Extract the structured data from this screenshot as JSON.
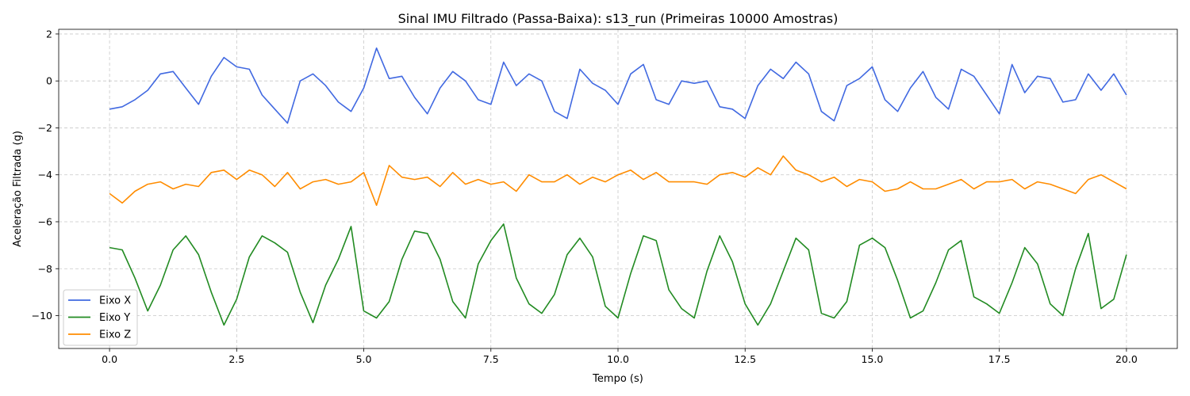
{
  "chart_data": {
    "type": "line",
    "title": "Sinal IMU Filtrado (Passa-Baixa): s13_run (Primeiras 10000 Amostras)",
    "xlabel": "Tempo (s)",
    "ylabel": "Aceleração Filtrada (g)",
    "xlim": [
      -1.0,
      21.0
    ],
    "ylim": [
      -11.4,
      2.2
    ],
    "xticks": [
      0.0,
      2.5,
      5.0,
      7.5,
      10.0,
      12.5,
      15.0,
      17.5,
      20.0
    ],
    "xtick_labels": [
      "0.0",
      "2.5",
      "5.0",
      "7.5",
      "10.0",
      "12.5",
      "15.0",
      "17.5",
      "20.0"
    ],
    "yticks": [
      2,
      0,
      -2,
      -4,
      -6,
      -8,
      -10
    ],
    "ytick_labels": [
      "2",
      "0",
      "−2",
      "−4",
      "−6",
      "−8",
      "−10"
    ],
    "grid": true,
    "legend_position": "lower-left",
    "series": [
      {
        "name": "Eixo X",
        "color": "#4169e1",
        "x": [
          0.0,
          0.25,
          0.5,
          0.75,
          1.0,
          1.25,
          1.5,
          1.75,
          2.0,
          2.25,
          2.5,
          2.75,
          3.0,
          3.25,
          3.5,
          3.75,
          4.0,
          4.25,
          4.5,
          4.75,
          5.0,
          5.25,
          5.5,
          5.75,
          6.0,
          6.25,
          6.5,
          6.75,
          7.0,
          7.25,
          7.5,
          7.75,
          8.0,
          8.25,
          8.5,
          8.75,
          9.0,
          9.25,
          9.5,
          9.75,
          10.0,
          10.25,
          10.5,
          10.75,
          11.0,
          11.25,
          11.5,
          11.75,
          12.0,
          12.25,
          12.5,
          12.75,
          13.0,
          13.25,
          13.5,
          13.75,
          14.0,
          14.25,
          14.5,
          14.75,
          15.0,
          15.25,
          15.5,
          15.75,
          16.0,
          16.25,
          16.5,
          16.75,
          17.0,
          17.25,
          17.5,
          17.75,
          18.0,
          18.25,
          18.5,
          18.75,
          19.0,
          19.25,
          19.5,
          19.75,
          20.0
        ],
        "values": [
          -1.2,
          -1.1,
          -0.8,
          -0.4,
          0.3,
          0.4,
          -0.3,
          -1.0,
          0.2,
          1.0,
          0.6,
          0.5,
          -0.6,
          -1.2,
          -1.8,
          0.0,
          0.3,
          -0.2,
          -0.9,
          -1.3,
          -0.3,
          1.4,
          0.1,
          0.2,
          -0.7,
          -1.4,
          -0.3,
          0.4,
          0.0,
          -0.8,
          -1.0,
          0.8,
          -0.2,
          0.3,
          0.0,
          -1.3,
          -1.6,
          0.5,
          -0.1,
          -0.4,
          -1.0,
          0.3,
          0.7,
          -0.8,
          -1.0,
          0.0,
          -0.1,
          0.0,
          -1.1,
          -1.2,
          -1.6,
          -0.2,
          0.5,
          0.1,
          0.8,
          0.3,
          -1.3,
          -1.7,
          -0.2,
          0.1,
          0.6,
          -0.8,
          -1.3,
          -0.3,
          0.4,
          -0.7,
          -1.2,
          0.5,
          0.2,
          -0.6,
          -1.4,
          0.7,
          -0.5,
          0.2,
          0.1,
          -0.9,
          -0.8,
          0.3,
          -0.4,
          0.3,
          -0.6
        ]
      },
      {
        "name": "Eixo Y",
        "color": "#228b22",
        "x": [
          0.0,
          0.25,
          0.5,
          0.75,
          1.0,
          1.25,
          1.5,
          1.75,
          2.0,
          2.25,
          2.5,
          2.75,
          3.0,
          3.25,
          3.5,
          3.75,
          4.0,
          4.25,
          4.5,
          4.75,
          5.0,
          5.25,
          5.5,
          5.75,
          6.0,
          6.25,
          6.5,
          6.75,
          7.0,
          7.25,
          7.5,
          7.75,
          8.0,
          8.25,
          8.5,
          8.75,
          9.0,
          9.25,
          9.5,
          9.75,
          10.0,
          10.25,
          10.5,
          10.75,
          11.0,
          11.25,
          11.5,
          11.75,
          12.0,
          12.25,
          12.5,
          12.75,
          13.0,
          13.25,
          13.5,
          13.75,
          14.0,
          14.25,
          14.5,
          14.75,
          15.0,
          15.25,
          15.5,
          15.75,
          16.0,
          16.25,
          16.5,
          16.75,
          17.0,
          17.25,
          17.5,
          17.75,
          18.0,
          18.25,
          18.5,
          18.75,
          19.0,
          19.25,
          19.5,
          19.75,
          20.0
        ],
        "values": [
          -7.1,
          -7.2,
          -8.4,
          -9.8,
          -8.7,
          -7.2,
          -6.6,
          -7.4,
          -9.0,
          -10.4,
          -9.3,
          -7.5,
          -6.6,
          -6.9,
          -7.3,
          -9.0,
          -10.3,
          -8.7,
          -7.6,
          -6.2,
          -9.8,
          -10.1,
          -9.4,
          -7.6,
          -6.4,
          -6.5,
          -7.6,
          -9.4,
          -10.1,
          -7.8,
          -6.8,
          -6.1,
          -8.4,
          -9.5,
          -9.9,
          -9.1,
          -7.4,
          -6.7,
          -7.5,
          -9.6,
          -10.1,
          -8.2,
          -6.6,
          -6.8,
          -8.9,
          -9.7,
          -10.1,
          -8.1,
          -6.6,
          -7.7,
          -9.5,
          -10.4,
          -9.5,
          -8.1,
          -6.7,
          -7.2,
          -9.9,
          -10.1,
          -9.4,
          -7.0,
          -6.7,
          -7.1,
          -8.5,
          -10.1,
          -9.8,
          -8.6,
          -7.2,
          -6.8,
          -9.2,
          -9.5,
          -9.9,
          -8.6,
          -7.1,
          -7.8,
          -9.5,
          -10.0,
          -8.0,
          -6.5,
          -9.7,
          -9.3,
          -7.4
        ]
      },
      {
        "name": "Eixo Z",
        "color": "#ff8c00",
        "x": [
          0.0,
          0.25,
          0.5,
          0.75,
          1.0,
          1.25,
          1.5,
          1.75,
          2.0,
          2.25,
          2.5,
          2.75,
          3.0,
          3.25,
          3.5,
          3.75,
          4.0,
          4.25,
          4.5,
          4.75,
          5.0,
          5.25,
          5.5,
          5.75,
          6.0,
          6.25,
          6.5,
          6.75,
          7.0,
          7.25,
          7.5,
          7.75,
          8.0,
          8.25,
          8.5,
          8.75,
          9.0,
          9.25,
          9.5,
          9.75,
          10.0,
          10.25,
          10.5,
          10.75,
          11.0,
          11.25,
          11.5,
          11.75,
          12.0,
          12.25,
          12.5,
          12.75,
          13.0,
          13.25,
          13.5,
          13.75,
          14.0,
          14.25,
          14.5,
          14.75,
          15.0,
          15.25,
          15.5,
          15.75,
          16.0,
          16.25,
          16.5,
          16.75,
          17.0,
          17.25,
          17.5,
          17.75,
          18.0,
          18.25,
          18.5,
          18.75,
          19.0,
          19.25,
          19.5,
          19.75,
          20.0
        ],
        "values": [
          -4.8,
          -5.2,
          -4.7,
          -4.4,
          -4.3,
          -4.6,
          -4.4,
          -4.5,
          -3.9,
          -3.8,
          -4.2,
          -3.8,
          -4.0,
          -4.5,
          -3.9,
          -4.6,
          -4.3,
          -4.2,
          -4.4,
          -4.3,
          -3.9,
          -5.3,
          -3.6,
          -4.1,
          -4.2,
          -4.1,
          -4.5,
          -3.9,
          -4.4,
          -4.2,
          -4.4,
          -4.3,
          -4.7,
          -4.0,
          -4.3,
          -4.3,
          -4.0,
          -4.4,
          -4.1,
          -4.3,
          -4.0,
          -3.8,
          -4.2,
          -3.9,
          -4.3,
          -4.3,
          -4.3,
          -4.4,
          -4.0,
          -3.9,
          -4.1,
          -3.7,
          -4.0,
          -3.2,
          -3.8,
          -4.0,
          -4.3,
          -4.1,
          -4.5,
          -4.2,
          -4.3,
          -4.7,
          -4.6,
          -4.3,
          -4.6,
          -4.6,
          -4.4,
          -4.2,
          -4.6,
          -4.3,
          -4.3,
          -4.2,
          -4.6,
          -4.3,
          -4.4,
          -4.6,
          -4.8,
          -4.2,
          -4.0,
          -4.3,
          -4.6
        ]
      }
    ],
    "legend_order": [
      "Eixo X",
      "Eixo Y",
      "Eixo Z"
    ]
  }
}
